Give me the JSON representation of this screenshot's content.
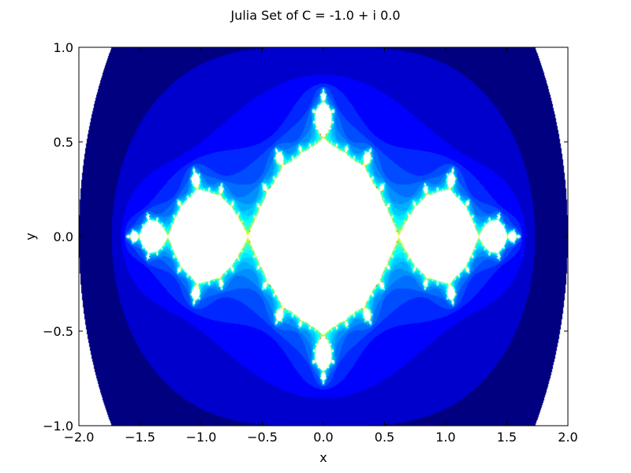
{
  "chart_data": {
    "type": "heatmap",
    "title": "Julia Set of C = -1.0 + i 0.0",
    "xlabel": "x",
    "ylabel": "y",
    "xlim": [
      -2.0,
      2.0
    ],
    "ylim": [
      -1.0,
      1.0
    ],
    "c_real": -1.0,
    "c_imag": 0.0,
    "x_ticks": [
      -2.0,
      -1.5,
      -1.0,
      -0.5,
      0.0,
      0.5,
      1.0,
      1.5,
      2.0
    ],
    "x_tick_labels": [
      "−2.0",
      "−1.5",
      "−1.0",
      "−0.5",
      "0.0",
      "0.5",
      "1.0",
      "1.5",
      "2.0"
    ],
    "y_ticks": [
      -1.0,
      -0.5,
      0.0,
      0.5,
      1.0
    ],
    "y_tick_labels": [
      "−1.0",
      "−0.5",
      "0.0",
      "0.5",
      "1.0"
    ],
    "colormap": "jet",
    "interior_color": "#ffffff",
    "grid": false,
    "legend": "none"
  }
}
